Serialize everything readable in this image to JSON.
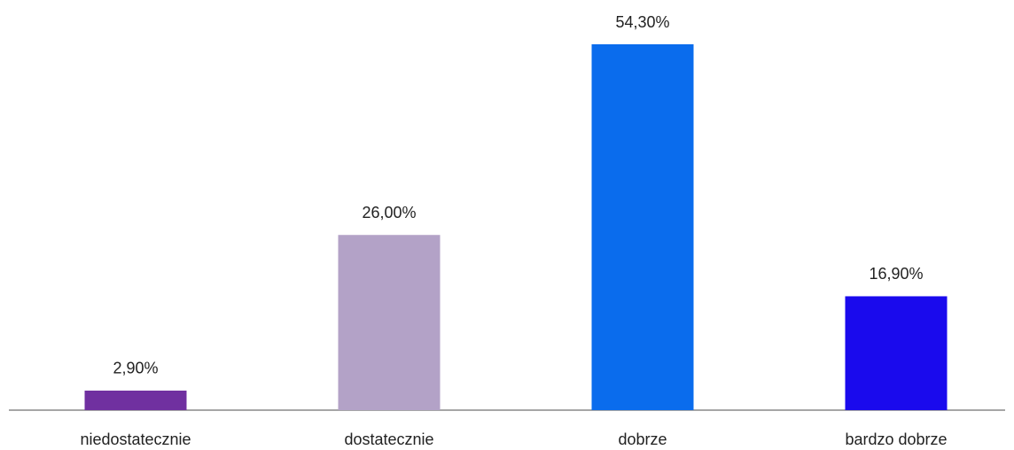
{
  "chart_data": {
    "type": "bar",
    "categories": [
      "niedostatecznie",
      "dostatecznie",
      "dobrze",
      "bardzo dobrze"
    ],
    "values": [
      2.9,
      26,
      54.3,
      16.9
    ],
    "value_labels": [
      "2,90%",
      "26,00%",
      "54,30%",
      "16,90%"
    ],
    "colors": [
      "#7030a0",
      "#b3a2c7",
      "#0a6ced",
      "#1a0aed"
    ]
  }
}
